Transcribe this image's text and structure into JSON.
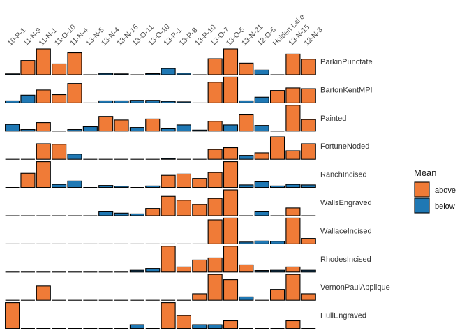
{
  "chart_data": {
    "type": "bar",
    "layout": "faceted-vertical",
    "categories": [
      "10-P-1",
      "11-N-9",
      "11-N-1",
      "11-O-10",
      "11-N-4",
      "13-N-5",
      "13-N-4",
      "13-N-16",
      "13-O-11",
      "13-O-10",
      "13-P-1",
      "13-P-8",
      "13-P-10",
      "13-O-7",
      "13-O-5",
      "13-N-21",
      "12-O-5",
      "Holden Lake",
      "13-N-15",
      "12-N-3"
    ],
    "x_axis_position": "top",
    "fill_by": "Mean",
    "legend": {
      "title": "Mean",
      "placement": "right",
      "items": [
        {
          "label": "above",
          "color": "#f07b37"
        },
        {
          "label": "below",
          "color": "#1f78b4"
        }
      ]
    },
    "panel_ylim": [
      0,
      1
    ],
    "panels": [
      {
        "name": "ParkinPunctate",
        "values": [
          0.02,
          0.55,
          1.0,
          0.42,
          0.85,
          0.0,
          0.05,
          0.02,
          0.0,
          0.04,
          0.24,
          0.06,
          0.0,
          0.62,
          1.0,
          0.45,
          0.18,
          0.0,
          0.8,
          0.6
        ],
        "groups": [
          "below",
          "above",
          "above",
          "above",
          "above",
          "below",
          "below",
          "below",
          "below",
          "below",
          "below",
          "below",
          "below",
          "above",
          "above",
          "above",
          "below",
          "below",
          "above",
          "above"
        ]
      },
      {
        "name": "BartonKentMPI",
        "values": [
          0.08,
          0.3,
          0.5,
          0.32,
          0.75,
          0.0,
          0.08,
          0.08,
          0.1,
          0.1,
          0.06,
          0.04,
          0.0,
          0.8,
          1.0,
          0.08,
          0.22,
          0.48,
          0.58,
          0.55
        ],
        "groups": [
          "below",
          "below",
          "above",
          "above",
          "above",
          "below",
          "below",
          "below",
          "below",
          "below",
          "below",
          "below",
          "below",
          "above",
          "above",
          "below",
          "below",
          "above",
          "above",
          "above"
        ]
      },
      {
        "name": "Painted",
        "values": [
          0.26,
          0.06,
          0.33,
          0.0,
          0.06,
          0.17,
          0.57,
          0.43,
          0.14,
          0.47,
          0.09,
          0.24,
          0.04,
          0.38,
          0.24,
          0.63,
          0.22,
          0.0,
          1.0,
          0.45
        ],
        "groups": [
          "below",
          "below",
          "above",
          "below",
          "below",
          "below",
          "above",
          "above",
          "below",
          "above",
          "below",
          "below",
          "below",
          "above",
          "below",
          "above",
          "below",
          "below",
          "above",
          "above"
        ]
      },
      {
        "name": "FortuneNoded",
        "values": [
          0.0,
          0.0,
          0.6,
          0.58,
          0.2,
          0.0,
          0.0,
          0.0,
          0.0,
          0.0,
          0.03,
          0.0,
          0.0,
          0.38,
          0.45,
          0.15,
          0.25,
          0.87,
          0.33,
          0.6
        ],
        "groups": [
          "below",
          "below",
          "above",
          "above",
          "below",
          "below",
          "below",
          "below",
          "below",
          "below",
          "below",
          "below",
          "below",
          "above",
          "above",
          "below",
          "above",
          "above",
          "above",
          "above"
        ]
      },
      {
        "name": "RanchIncised",
        "values": [
          0.0,
          0.55,
          1.0,
          0.12,
          0.25,
          0.0,
          0.08,
          0.05,
          0.0,
          0.06,
          0.47,
          0.52,
          0.35,
          0.58,
          1.0,
          0.1,
          0.22,
          0.06,
          0.12,
          0.1
        ],
        "groups": [
          "below",
          "above",
          "above",
          "below",
          "below",
          "below",
          "below",
          "below",
          "below",
          "below",
          "above",
          "above",
          "above",
          "above",
          "above",
          "below",
          "below",
          "below",
          "below",
          "below"
        ]
      },
      {
        "name": "WallsEngraved",
        "values": [
          0.0,
          0.0,
          0.0,
          0.0,
          0.0,
          0.0,
          0.15,
          0.1,
          0.07,
          0.28,
          0.75,
          0.6,
          0.43,
          0.67,
          1.0,
          0.0,
          0.15,
          0.0,
          0.3,
          0.0
        ],
        "groups": [
          "below",
          "below",
          "below",
          "below",
          "below",
          "below",
          "below",
          "below",
          "below",
          "above",
          "above",
          "above",
          "above",
          "above",
          "above",
          "below",
          "below",
          "below",
          "above",
          "below"
        ]
      },
      {
        "name": "WallaceIncised",
        "values": [
          0.0,
          0.0,
          0.0,
          0.0,
          0.0,
          0.0,
          0.0,
          0.0,
          0.0,
          0.0,
          0.0,
          0.0,
          0.0,
          0.93,
          1.0,
          0.07,
          0.11,
          0.1,
          1.0,
          0.21
        ],
        "groups": [
          "below",
          "below",
          "below",
          "below",
          "below",
          "below",
          "below",
          "below",
          "below",
          "below",
          "below",
          "below",
          "below",
          "above",
          "above",
          "below",
          "below",
          "below",
          "above",
          "above"
        ]
      },
      {
        "name": "RhodesIncised",
        "values": [
          0.0,
          0.0,
          0.0,
          0.0,
          0.0,
          0.0,
          0.0,
          0.0,
          0.07,
          0.14,
          1.0,
          0.2,
          0.47,
          0.55,
          1.0,
          0.28,
          0.06,
          0.07,
          0.2,
          0.07
        ],
        "groups": [
          "below",
          "below",
          "below",
          "below",
          "below",
          "below",
          "below",
          "below",
          "below",
          "below",
          "above",
          "above",
          "above",
          "above",
          "above",
          "above",
          "below",
          "below",
          "above",
          "below"
        ]
      },
      {
        "name": "VernonPaulApplique",
        "values": [
          0.0,
          0.0,
          0.55,
          0.0,
          0.0,
          0.0,
          0.0,
          0.0,
          0.0,
          0.0,
          0.0,
          0.0,
          0.25,
          1.0,
          0.8,
          0.13,
          0.0,
          0.42,
          1.0,
          0.25
        ],
        "groups": [
          "below",
          "below",
          "above",
          "below",
          "below",
          "below",
          "below",
          "below",
          "below",
          "below",
          "below",
          "below",
          "above",
          "above",
          "above",
          "below",
          "below",
          "above",
          "above",
          "above"
        ]
      },
      {
        "name": "HullEngraved",
        "values": [
          1.0,
          0.0,
          0.0,
          0.0,
          0.0,
          0.0,
          0.0,
          0.0,
          0.15,
          0.0,
          1.0,
          0.5,
          0.15,
          0.15,
          0.3,
          0.0,
          0.0,
          0.0,
          0.3,
          0.0
        ],
        "groups": [
          "above",
          "below",
          "below",
          "below",
          "below",
          "below",
          "below",
          "below",
          "below",
          "below",
          "above",
          "above",
          "below",
          "below",
          "above",
          "below",
          "below",
          "below",
          "above",
          "below"
        ]
      }
    ]
  }
}
